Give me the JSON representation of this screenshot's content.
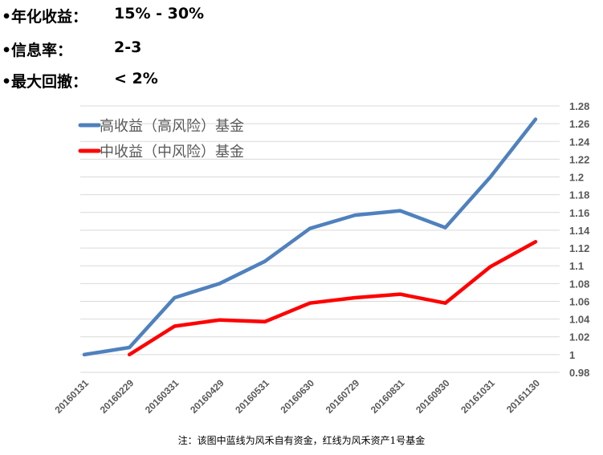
{
  "bullets": [
    {
      "label": "年化收益：",
      "value": "15% - 30%"
    },
    {
      "label": "信息率：",
      "value": "2-3"
    },
    {
      "label": "最大回撤：",
      "value": "< 2%"
    }
  ],
  "footnote": "注：该图中蓝线为风禾自有资金，红线为风禾资产1号基金",
  "chart_data": {
    "type": "line",
    "x": [
      "20160131",
      "20160229",
      "20160331",
      "20160429",
      "20160531",
      "20160630",
      "20160729",
      "20160831",
      "20160930",
      "20161031",
      "20161130"
    ],
    "ylim": [
      0.98,
      1.28
    ],
    "yticks": [
      "0.98",
      "1",
      "1.02",
      "1.04",
      "1.06",
      "1.08",
      "1.1",
      "1.12",
      "1.14",
      "1.16",
      "1.18",
      "1.2",
      "1.22",
      "1.24",
      "1.26",
      "1.28"
    ],
    "grid": true,
    "legend_position": "top-left",
    "series": [
      {
        "name": "高收益（高风险）基金",
        "color": "#4f81bd",
        "values": [
          1.0,
          1.008,
          1.064,
          1.08,
          1.105,
          1.142,
          1.157,
          1.162,
          1.143,
          1.2,
          1.265
        ]
      },
      {
        "name": "中收益（中风险）基金",
        "color": "#ff0000",
        "values": [
          null,
          1.0,
          1.032,
          1.039,
          1.037,
          1.058,
          1.064,
          1.068,
          1.058,
          1.099,
          1.127
        ]
      }
    ]
  }
}
